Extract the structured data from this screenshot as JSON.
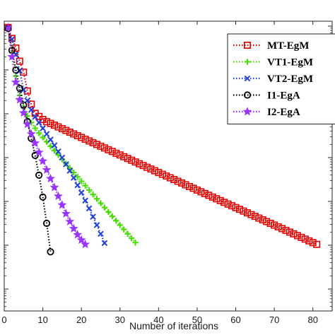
{
  "chart_data": {
    "type": "line",
    "xlabel": "Number of iterations",
    "ylabel": "",
    "title": "",
    "xlim": [
      0,
      85
    ],
    "xticks": [
      "0",
      "10",
      "20",
      "30",
      "40",
      "50",
      "60",
      "70",
      "80"
    ],
    "y_scale": "log",
    "grid": false,
    "legend_position": "top-right",
    "series": [
      {
        "name": "MT-EgM",
        "color": "#e00000",
        "marker": "square",
        "line": "dotted",
        "x": [
          1,
          2,
          3,
          4,
          5,
          6,
          7,
          8,
          9,
          10,
          11,
          12,
          13,
          14,
          15,
          16,
          17,
          18,
          19,
          20,
          21,
          22,
          23,
          24,
          25,
          26,
          27,
          28,
          29,
          30,
          31,
          32,
          33,
          34,
          35,
          36,
          37,
          38,
          39,
          40,
          41,
          42,
          43,
          44,
          45,
          46,
          47,
          48,
          49,
          50,
          51,
          52,
          53,
          54,
          55,
          56,
          57,
          58,
          59,
          60,
          61,
          62,
          63,
          64,
          65,
          66,
          67,
          68,
          69,
          70,
          71,
          72,
          73,
          74,
          75,
          76,
          77,
          78,
          79,
          80,
          81
        ],
        "log10y": [
          -0.03,
          -0.28,
          -0.5,
          -0.8,
          -1.05,
          -1.48,
          -1.78,
          -1.99,
          -2.06,
          -2.13,
          -2.18,
          -2.22,
          -2.26,
          -2.3,
          -2.34,
          -2.38,
          -2.42,
          -2.46,
          -2.5,
          -2.54,
          -2.58,
          -2.62,
          -2.66,
          -2.7,
          -2.74,
          -2.78,
          -2.82,
          -2.86,
          -2.9,
          -2.94,
          -2.98,
          -3.02,
          -3.06,
          -3.1,
          -3.14,
          -3.18,
          -3.22,
          -3.26,
          -3.3,
          -3.34,
          -3.38,
          -3.42,
          -3.46,
          -3.5,
          -3.54,
          -3.58,
          -3.62,
          -3.66,
          -3.7,
          -3.74,
          -3.78,
          -3.82,
          -3.86,
          -3.9,
          -3.94,
          -3.98,
          -4.02,
          -4.06,
          -4.1,
          -4.14,
          -4.18,
          -4.22,
          -4.26,
          -4.3,
          -4.34,
          -4.38,
          -4.42,
          -4.46,
          -4.5,
          -4.54,
          -4.58,
          -4.62,
          -4.66,
          -4.7,
          -4.74,
          -4.78,
          -4.82,
          -4.86,
          -4.9,
          -4.94,
          -4.98
        ]
      },
      {
        "name": "VT1-EgM",
        "color": "#44dd00",
        "marker": "plus",
        "line": "dotted",
        "x": [
          1,
          2,
          3,
          4,
          5,
          6,
          7,
          8,
          9,
          10,
          11,
          12,
          13,
          14,
          15,
          16,
          17,
          18,
          19,
          20,
          21,
          22,
          23,
          24,
          25,
          26,
          27,
          28,
          29,
          30,
          31,
          32,
          33,
          34
        ],
        "log10y": [
          -0.03,
          -0.6,
          -1.14,
          -1.58,
          -1.86,
          -2.05,
          -2.2,
          -2.33,
          -2.44,
          -2.54,
          -2.64,
          -2.74,
          -2.84,
          -2.94,
          -3.04,
          -3.14,
          -3.24,
          -3.34,
          -3.44,
          -3.54,
          -3.64,
          -3.74,
          -3.84,
          -3.94,
          -4.04,
          -4.14,
          -4.24,
          -4.34,
          -4.44,
          -4.54,
          -4.64,
          -4.74,
          -4.84,
          -4.94
        ]
      },
      {
        "name": "VT2-EgM",
        "color": "#1f3fd8",
        "marker": "x",
        "line": "dotted",
        "x": [
          1,
          2,
          3,
          4,
          5,
          6,
          7,
          8,
          9,
          10,
          11,
          12,
          13,
          14,
          15,
          16,
          17,
          18,
          19,
          20,
          21,
          22,
          23,
          24,
          25,
          26
        ],
        "log10y": [
          -0.05,
          -0.3,
          -0.65,
          -1.02,
          -1.45,
          -1.7,
          -1.91,
          -2.07,
          -2.2,
          -2.33,
          -2.46,
          -2.59,
          -2.72,
          -2.86,
          -3.0,
          -3.15,
          -3.3,
          -3.46,
          -3.63,
          -3.8,
          -3.98,
          -4.16,
          -4.35,
          -4.54,
          -4.74,
          -4.95
        ]
      },
      {
        "name": "I1-EgA",
        "color": "#000000",
        "marker": "circle",
        "line": "dotted",
        "x": [
          1,
          2,
          3,
          4,
          5,
          6,
          7,
          8,
          9,
          10,
          11,
          12
        ],
        "log10y": [
          -0.05,
          -0.55,
          -1.0,
          -1.42,
          -1.8,
          -2.18,
          -2.56,
          -2.95,
          -3.4,
          -3.9,
          -4.5,
          -5.15
        ]
      },
      {
        "name": "I2-EgA",
        "color": "#9933ff",
        "marker": "star",
        "line": "dotted",
        "x": [
          1,
          2,
          3,
          4,
          5,
          6,
          7,
          8,
          9,
          10,
          11,
          12,
          13,
          14,
          15,
          16,
          17,
          18,
          19,
          20,
          21
        ],
        "log10y": [
          -0.03,
          -0.7,
          -1.28,
          -1.68,
          -1.98,
          -2.24,
          -2.46,
          -2.67,
          -2.88,
          -3.08,
          -3.28,
          -3.48,
          -3.68,
          -3.88,
          -4.08,
          -4.28,
          -4.46,
          -4.62,
          -4.76,
          -4.88,
          -4.98
        ]
      }
    ]
  }
}
